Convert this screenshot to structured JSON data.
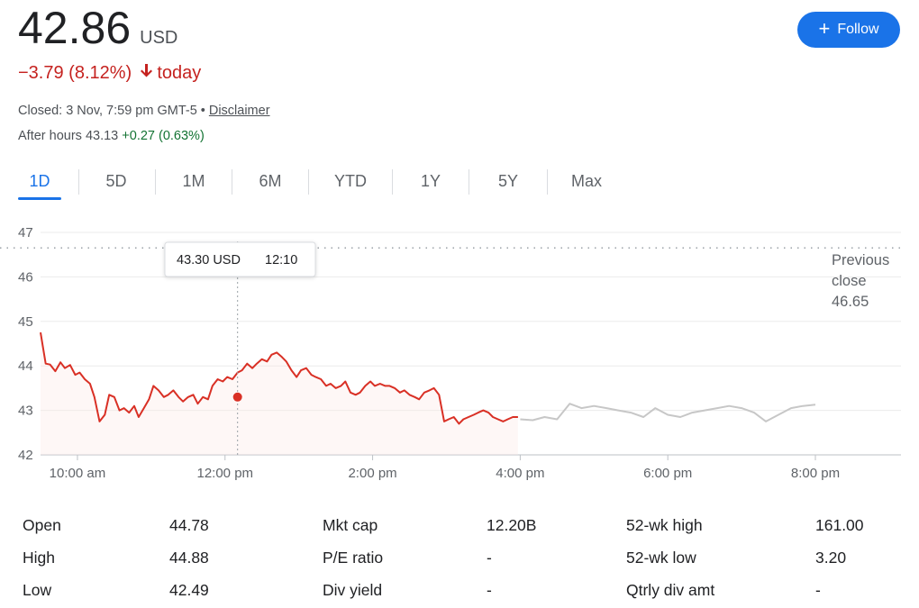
{
  "quote": {
    "price": "42.86",
    "currency": "USD",
    "change": "−3.79 (8.12%)",
    "change_suffix": "today",
    "closed_text": "Closed: 3 Nov, 7:59 pm GMT-5",
    "separator": "•",
    "disclaimer": "Disclaimer",
    "after_hours_label": "After hours 43.13",
    "after_hours_change": "+0.27 (0.63%)"
  },
  "follow": {
    "label": "Follow"
  },
  "tabs": [
    {
      "label": "1D",
      "active": true
    },
    {
      "label": "5D",
      "active": false
    },
    {
      "label": "1M",
      "active": false
    },
    {
      "label": "6M",
      "active": false
    },
    {
      "label": "YTD",
      "active": false
    },
    {
      "label": "1Y",
      "active": false
    },
    {
      "label": "5Y",
      "active": false
    },
    {
      "label": "Max",
      "active": false
    }
  ],
  "colors": {
    "regular_line": "#d93025",
    "after_hours_line": "#c7c7c7",
    "accent": "#1a73e8",
    "negative": "#c5221f",
    "positive": "#137333"
  },
  "chart_data": {
    "type": "line",
    "ylim": [
      42,
      47
    ],
    "y_ticks": [
      "42",
      "43",
      "44",
      "45",
      "46",
      "47"
    ],
    "x_tick_labels": [
      "10:00 am",
      "12:00 pm",
      "2:00 pm",
      "4:00 pm",
      "6:00 pm",
      "8:00 pm"
    ],
    "x_tick_hours": [
      10,
      12,
      14,
      16,
      18,
      20
    ],
    "x_range_hours": [
      9.5,
      20.0
    ],
    "previous_close": {
      "value": 46.65,
      "label_line1": "Previous",
      "label_line2": "close",
      "label_value": "46.65"
    },
    "tooltip": {
      "price": "43.30 USD",
      "time": "12:10",
      "x": 12.17,
      "y": 43.3
    },
    "series": [
      {
        "segment": "regular",
        "x": [
          9.5,
          9.57,
          9.63,
          9.7,
          9.77,
          9.83,
          9.9,
          9.97,
          10.03,
          10.1,
          10.17,
          10.23,
          10.3,
          10.37,
          10.43,
          10.5,
          10.57,
          10.63,
          10.7,
          10.77,
          10.83,
          10.9,
          10.97,
          11.03,
          11.1,
          11.17,
          11.23,
          11.3,
          11.37,
          11.43,
          11.5,
          11.57,
          11.63,
          11.7,
          11.77,
          11.83,
          11.9,
          11.97,
          12.03,
          12.1,
          12.17,
          12.23,
          12.3,
          12.37,
          12.43,
          12.5,
          12.57,
          12.63,
          12.7,
          12.77,
          12.83,
          12.9,
          12.97,
          13.03,
          13.1,
          13.17,
          13.23,
          13.3,
          13.37,
          13.43,
          13.5,
          13.57,
          13.63,
          13.7,
          13.77,
          13.83,
          13.9,
          13.97,
          14.03,
          14.1,
          14.17,
          14.23,
          14.3,
          14.37,
          14.43,
          14.5,
          14.57,
          14.63,
          14.7,
          14.77,
          14.83,
          14.9,
          14.97,
          15.03,
          15.1,
          15.17,
          15.23,
          15.3,
          15.37,
          15.43,
          15.5,
          15.57,
          15.63,
          15.7,
          15.77,
          15.83,
          15.9,
          15.97
        ],
        "y": [
          44.75,
          44.05,
          44.03,
          43.88,
          44.08,
          43.95,
          44.02,
          43.8,
          43.85,
          43.7,
          43.6,
          43.3,
          42.75,
          42.9,
          43.35,
          43.3,
          43.0,
          43.05,
          42.95,
          43.1,
          42.85,
          43.05,
          43.25,
          43.55,
          43.45,
          43.3,
          43.35,
          43.45,
          43.3,
          43.2,
          43.3,
          43.35,
          43.15,
          43.3,
          43.25,
          43.55,
          43.7,
          43.65,
          43.75,
          43.7,
          43.85,
          43.9,
          44.05,
          43.95,
          44.05,
          44.15,
          44.1,
          44.25,
          44.3,
          44.2,
          44.1,
          43.9,
          43.75,
          43.9,
          43.95,
          43.8,
          43.75,
          43.7,
          43.55,
          43.6,
          43.5,
          43.55,
          43.65,
          43.4,
          43.35,
          43.4,
          43.55,
          43.65,
          43.55,
          43.6,
          43.55,
          43.55,
          43.5,
          43.4,
          43.45,
          43.35,
          43.3,
          43.25,
          43.4,
          43.45,
          43.5,
          43.35,
          42.75,
          42.8,
          42.85,
          42.7,
          42.8,
          42.85,
          42.9,
          42.95,
          43.0,
          42.95,
          42.85,
          42.8,
          42.75,
          42.8,
          42.85,
          42.85
        ]
      },
      {
        "segment": "after_hours",
        "x": [
          16.0,
          16.17,
          16.33,
          16.5,
          16.67,
          16.83,
          17.0,
          17.17,
          17.33,
          17.5,
          17.67,
          17.83,
          18.0,
          18.17,
          18.33,
          18.5,
          18.67,
          18.83,
          19.0,
          19.17,
          19.33,
          19.5,
          19.67,
          19.83,
          20.0
        ],
        "y": [
          42.8,
          42.78,
          42.85,
          42.8,
          43.15,
          43.05,
          43.1,
          43.05,
          43.0,
          42.95,
          42.85,
          43.05,
          42.9,
          42.85,
          42.95,
          43.0,
          43.05,
          43.1,
          43.05,
          42.95,
          42.75,
          42.9,
          43.05,
          43.1,
          43.13
        ]
      }
    ]
  },
  "stats": {
    "columns": [
      [
        {
          "label": "Open",
          "value": "44.78"
        },
        {
          "label": "High",
          "value": "44.88"
        },
        {
          "label": "Low",
          "value": "42.49"
        }
      ],
      [
        {
          "label": "Mkt cap",
          "value": "12.20B"
        },
        {
          "label": "P/E ratio",
          "value": "-"
        },
        {
          "label": "Div yield",
          "value": "-"
        }
      ],
      [
        {
          "label": "52-wk high",
          "value": "161.00"
        },
        {
          "label": "52-wk low",
          "value": "3.20"
        },
        {
          "label": "Qtrly div amt",
          "value": "-"
        }
      ]
    ]
  }
}
